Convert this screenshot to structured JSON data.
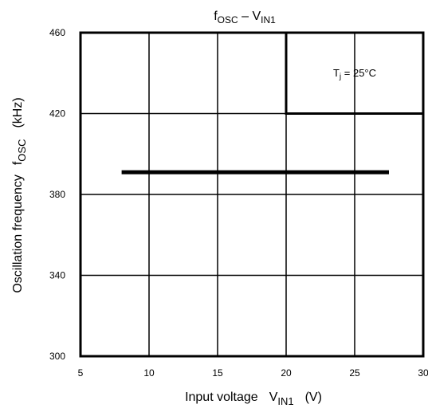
{
  "chart_data": {
    "type": "line",
    "title_main": "f",
    "title_sub1": "OSC",
    "title_mid": " – V",
    "title_sub2": "IN1",
    "xlabel_main": "Input voltage",
    "xlabel_sym": "V",
    "xlabel_sub": "IN1",
    "xlabel_unit": "(V)",
    "ylabel_main": "Oscillation frequency",
    "ylabel_sym": "f",
    "ylabel_sub": "OSC",
    "ylabel_unit": "(kHz)",
    "xlim": [
      5,
      30
    ],
    "ylim": [
      300,
      460
    ],
    "xticks": [
      5,
      10,
      15,
      20,
      25,
      30
    ],
    "yticks": [
      300,
      340,
      380,
      420,
      460
    ],
    "xtick_labels": [
      "5",
      "10",
      "15",
      "20",
      "25",
      "30"
    ],
    "ytick_labels": [
      "300",
      "340",
      "380",
      "420",
      "460"
    ],
    "grid": true,
    "annotation": {
      "text_main": "T",
      "text_sub": "j",
      "text_rest": " = 25°C",
      "box_x": [
        20,
        30
      ],
      "box_y": [
        420,
        460
      ]
    },
    "series": [
      {
        "x": [
          8,
          27.5
        ],
        "y": [
          391,
          391
        ],
        "color": "#000000"
      }
    ]
  }
}
